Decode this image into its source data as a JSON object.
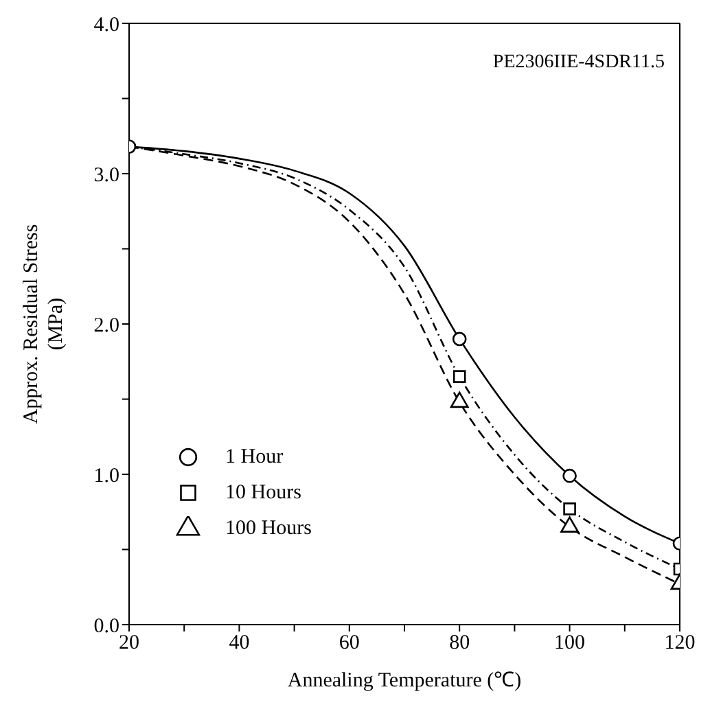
{
  "chart_data": {
    "type": "line",
    "xlabel": "Annealing Temperature (℃)",
    "ylabel": "Approx. Residual Stress\n(MPa)",
    "annotations": [
      "PE2306IIE-4SDR11.5"
    ],
    "xlim": [
      20,
      120
    ],
    "xticks": [
      20,
      {
        "value": 30,
        "label": null
      },
      40,
      {
        "value": 50,
        "label": null
      },
      60,
      {
        "value": 70,
        "label": null
      },
      80,
      {
        "value": 90,
        "label": null
      },
      100,
      {
        "value": 110,
        "label": null
      },
      120
    ],
    "ylim": [
      0,
      4
    ],
    "yticks": [
      {
        "value": 0,
        "label": "0.0"
      },
      {
        "value": 0.5,
        "label": null
      },
      {
        "value": 1,
        "label": "1.0"
      },
      {
        "value": 1.5,
        "label": null
      },
      {
        "value": 2,
        "label": "2.0"
      },
      {
        "value": 2.5,
        "label": null
      },
      {
        "value": 3,
        "label": "3.0"
      },
      {
        "value": 3.5,
        "label": null
      },
      {
        "value": 4,
        "label": "4.0"
      }
    ],
    "legend": "left",
    "series": [
      {
        "line_style": "solid",
        "color": "#000000",
        "x": [
          20,
          30,
          40,
          50,
          60,
          70,
          80,
          90,
          100,
          110,
          120
        ],
        "values": [
          3.18,
          3.15,
          3.1,
          3.02,
          2.87,
          2.52,
          1.9,
          1.38,
          0.99,
          0.72,
          0.54
        ]
      },
      {
        "line_style": "dotted",
        "color": "#000000",
        "x": [
          20,
          30,
          40,
          50,
          60,
          70,
          80,
          90,
          100,
          110,
          120
        ],
        "values": [
          3.18,
          3.13,
          3.07,
          2.97,
          2.76,
          2.38,
          1.65,
          1.13,
          0.77,
          0.55,
          0.37
        ]
      },
      {
        "line_style": "dashed",
        "color": "#000000",
        "x": [
          20,
          30,
          40,
          50,
          60,
          70,
          80,
          90,
          100,
          110,
          120
        ],
        "values": [
          3.18,
          3.12,
          3.05,
          2.93,
          2.68,
          2.2,
          1.48,
          1.0,
          0.65,
          0.45,
          0.27
        ]
      },
      {
        "type": "scatter",
        "name": "1 Hour",
        "marker": "circle",
        "color": "#000000",
        "x": [
          20,
          80,
          100,
          120
        ],
        "values": [
          3.18,
          1.9,
          0.99,
          0.54
        ]
      },
      {
        "type": "scatter",
        "name": "10 Hours",
        "marker": "square",
        "color": "#000000",
        "x": [
          80,
          100,
          120
        ],
        "values": [
          1.65,
          0.77,
          0.37
        ]
      },
      {
        "type": "scatter",
        "name": "100 Hours",
        "marker": "triangle",
        "color": "#000000",
        "x": [
          80,
          100,
          120
        ],
        "values": [
          1.48,
          0.65,
          0.27
        ]
      }
    ]
  }
}
